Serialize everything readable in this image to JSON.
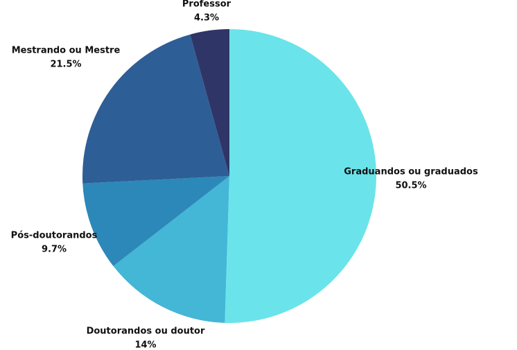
{
  "chart_data": {
    "type": "pie",
    "categories": [
      "Graduandos ou graduados",
      "Doutorandos ou doutor",
      "Pós-doutorandos",
      "Mestrando ou Mestre",
      "Professor"
    ],
    "values": [
      50.5,
      14,
      9.7,
      21.5,
      4.3
    ],
    "value_labels": [
      "50.5%",
      "14%",
      "9.7%",
      "21.5%",
      "4.3%"
    ],
    "colors": [
      "#6ae4ea",
      "#44b6d6",
      "#2c88b8",
      "#2e5e96",
      "#2f3566"
    ]
  }
}
